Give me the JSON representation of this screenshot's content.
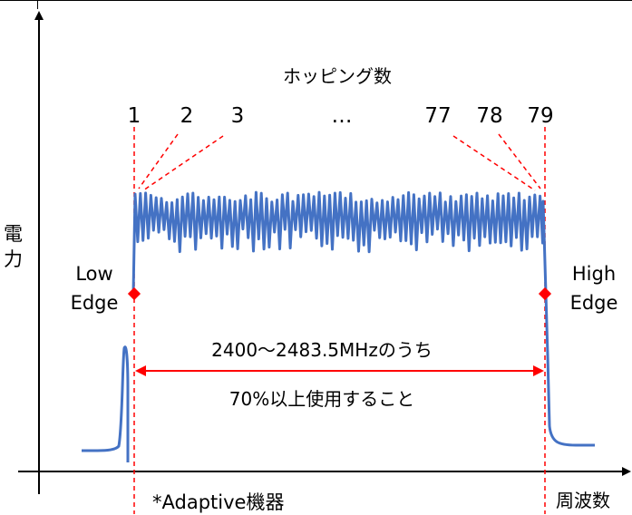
{
  "title": "ホッピング数",
  "hop_labels": {
    "h1": "1",
    "h2": "2",
    "h3": "3",
    "ellipsis": "…",
    "h77": "77",
    "h78": "78",
    "h79": "79"
  },
  "y_axis_label": {
    "line1": "電",
    "line2": "力"
  },
  "x_axis_label": "周波数",
  "low_edge": {
    "line1": "Low",
    "line2": "Edge"
  },
  "high_edge": {
    "line1": "High",
    "line2": "Edge"
  },
  "range_text": "2400〜2483.5MHzのうち",
  "usage_text": "70%以上使用すること",
  "footnote": "*Adaptive機器",
  "colors": {
    "signal": "#4472C4",
    "arrow": "#FF0000",
    "marker": "#FF0000",
    "axis": "#000000"
  }
}
